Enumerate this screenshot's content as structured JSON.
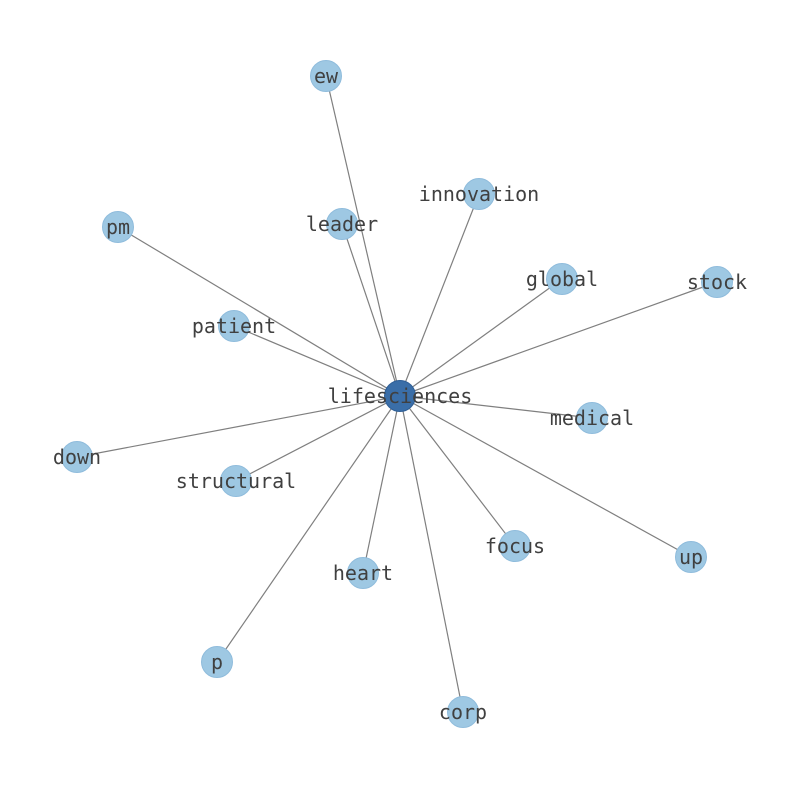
{
  "diagram": {
    "type": "network",
    "center_node": "lifesciences",
    "colors": {
      "center_node": "#3a6ea8",
      "leaf_node": "#9ec8e3",
      "edge": "#7f7f7f",
      "label": "#404040"
    },
    "nodes": [
      "lifesciences",
      "ew",
      "innovation",
      "leader",
      "pm",
      "global",
      "stock",
      "patient",
      "medical",
      "down",
      "structural",
      "focus",
      "up",
      "heart",
      "p",
      "corp"
    ],
    "edges": [
      [
        "lifesciences",
        "ew"
      ],
      [
        "lifesciences",
        "innovation"
      ],
      [
        "lifesciences",
        "leader"
      ],
      [
        "lifesciences",
        "pm"
      ],
      [
        "lifesciences",
        "global"
      ],
      [
        "lifesciences",
        "stock"
      ],
      [
        "lifesciences",
        "patient"
      ],
      [
        "lifesciences",
        "medical"
      ],
      [
        "lifesciences",
        "down"
      ],
      [
        "lifesciences",
        "structural"
      ],
      [
        "lifesciences",
        "focus"
      ],
      [
        "lifesciences",
        "up"
      ],
      [
        "lifesciences",
        "heart"
      ],
      [
        "lifesciences",
        "p"
      ],
      [
        "lifesciences",
        "corp"
      ]
    ]
  }
}
